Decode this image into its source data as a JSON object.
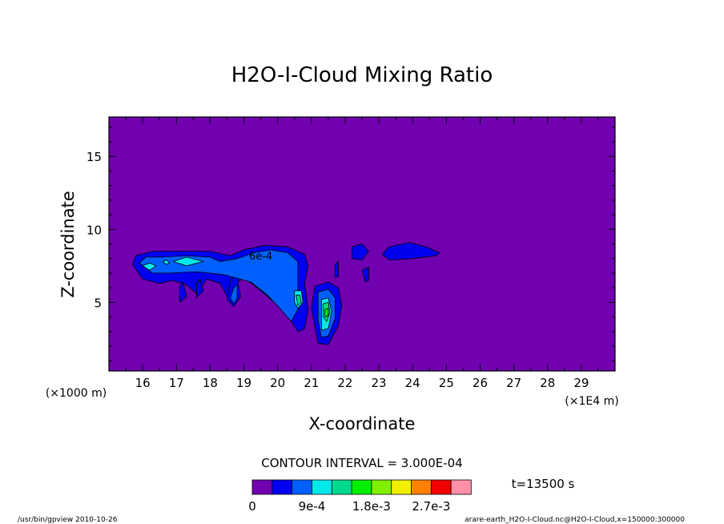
{
  "chart_data": {
    "type": "heatmap",
    "title": "H2O-I-Cloud Mixing Ratio",
    "xlabel": "X-coordinate",
    "ylabel": "Z-coordinate",
    "x_unit_left": "(×1000 m)",
    "x_unit_right": "(×1E4 m)",
    "xlim": [
      15,
      30
    ],
    "ylim": [
      0.3,
      17.7
    ],
    "x_ticks": [
      16,
      17,
      18,
      19,
      20,
      21,
      22,
      23,
      24,
      25,
      26,
      27,
      28,
      29
    ],
    "x_tick_labels": [
      "16",
      "17",
      "18",
      "19",
      "20",
      "21",
      "22",
      "23",
      "24",
      "25",
      "26",
      "27",
      "28",
      "29"
    ],
    "y_ticks": [
      5,
      10,
      15
    ],
    "y_tick_labels": [
      "5",
      "10",
      "15"
    ],
    "background_color": "#7000b0",
    "contour_label": {
      "text": "6e-4",
      "x": 19.5,
      "y": 8.2
    },
    "regions": [
      {
        "level": 1,
        "color": "#0000f0",
        "points": [
          [
            15.7,
            7.6
          ],
          [
            15.8,
            8.2
          ],
          [
            16.3,
            8.5
          ],
          [
            17.0,
            8.5
          ],
          [
            18.0,
            8.5
          ],
          [
            18.6,
            8.2
          ],
          [
            19.0,
            8.6
          ],
          [
            19.6,
            8.9
          ],
          [
            20.3,
            8.8
          ],
          [
            20.8,
            8.3
          ],
          [
            20.9,
            7.5
          ],
          [
            20.8,
            6.3
          ],
          [
            20.9,
            4.5
          ],
          [
            20.8,
            3.2
          ],
          [
            20.6,
            3.0
          ],
          [
            20.3,
            4.1
          ],
          [
            19.9,
            5.0
          ],
          [
            19.5,
            5.8
          ],
          [
            19.0,
            6.7
          ],
          [
            18.7,
            6.2
          ],
          [
            18.5,
            5.4
          ],
          [
            18.3,
            6.3
          ],
          [
            17.9,
            6.6
          ],
          [
            17.6,
            5.6
          ],
          [
            17.3,
            6.2
          ],
          [
            16.9,
            6.5
          ],
          [
            16.5,
            6.3
          ],
          [
            16.0,
            6.6
          ]
        ]
      },
      {
        "level": 1,
        "color": "#0000f0",
        "points": [
          [
            21.1,
            6.1
          ],
          [
            21.5,
            6.4
          ],
          [
            21.8,
            6.0
          ],
          [
            21.9,
            4.8
          ],
          [
            21.8,
            3.4
          ],
          [
            21.5,
            2.1
          ],
          [
            21.2,
            2.2
          ],
          [
            21.1,
            3.4
          ],
          [
            21.0,
            4.6
          ]
        ]
      },
      {
        "level": 1,
        "color": "#0000f0",
        "points": [
          [
            22.2,
            8.8
          ],
          [
            22.5,
            9.0
          ],
          [
            22.7,
            8.5
          ],
          [
            22.5,
            7.9
          ],
          [
            22.2,
            8.0
          ]
        ]
      },
      {
        "level": 1,
        "color": "#0000f0",
        "points": [
          [
            23.1,
            8.3
          ],
          [
            23.3,
            8.8
          ],
          [
            23.9,
            9.1
          ],
          [
            24.4,
            8.8
          ],
          [
            24.8,
            8.4
          ],
          [
            24.7,
            8.2
          ],
          [
            24.0,
            8.0
          ],
          [
            23.3,
            7.9
          ]
        ]
      },
      {
        "level": 1,
        "color": "#0000f0",
        "points": [
          [
            18.6,
            6.6
          ],
          [
            18.8,
            6.8
          ],
          [
            18.9,
            5.4
          ],
          [
            18.7,
            4.7
          ],
          [
            18.5,
            5.2
          ]
        ]
      },
      {
        "level": 1,
        "color": "#0000f0",
        "points": [
          [
            17.6,
            6.3
          ],
          [
            17.7,
            6.6
          ],
          [
            17.8,
            5.8
          ],
          [
            17.6,
            5.3
          ]
        ]
      },
      {
        "level": 1,
        "color": "#0000f0",
        "points": [
          [
            17.1,
            6.1
          ],
          [
            17.2,
            6.4
          ],
          [
            17.3,
            5.4
          ],
          [
            17.1,
            5.0
          ]
        ]
      },
      {
        "level": 1,
        "color": "#0000f0",
        "points": [
          [
            22.5,
            7.2
          ],
          [
            22.7,
            7.4
          ],
          [
            22.7,
            6.5
          ],
          [
            22.6,
            6.4
          ]
        ]
      },
      {
        "level": 1,
        "color": "#0000f0",
        "points": [
          [
            21.7,
            7.6
          ],
          [
            21.8,
            7.8
          ],
          [
            21.8,
            6.8
          ],
          [
            21.7,
            6.7
          ]
        ]
      },
      {
        "level": 2,
        "color": "#0060ff",
        "points": [
          [
            15.9,
            7.7
          ],
          [
            16.1,
            8.1
          ],
          [
            16.6,
            8.1
          ],
          [
            17.3,
            8.2
          ],
          [
            18.0,
            8.1
          ],
          [
            18.3,
            7.8
          ],
          [
            18.8,
            8.0
          ],
          [
            19.3,
            8.4
          ],
          [
            19.8,
            8.6
          ],
          [
            20.3,
            8.4
          ],
          [
            20.6,
            7.8
          ],
          [
            20.6,
            6.5
          ],
          [
            20.6,
            4.5
          ],
          [
            20.4,
            3.7
          ],
          [
            20.1,
            4.5
          ],
          [
            19.7,
            5.5
          ],
          [
            19.2,
            6.4
          ],
          [
            18.4,
            6.9
          ],
          [
            17.6,
            7.1
          ],
          [
            16.8,
            7.0
          ],
          [
            16.3,
            7.0
          ]
        ]
      },
      {
        "level": 2,
        "color": "#0060ff",
        "points": [
          [
            21.2,
            5.7
          ],
          [
            21.5,
            5.9
          ],
          [
            21.7,
            5.3
          ],
          [
            21.7,
            3.9
          ],
          [
            21.5,
            2.7
          ],
          [
            21.3,
            2.6
          ],
          [
            21.2,
            3.8
          ]
        ]
      },
      {
        "level": 2,
        "color": "#0060ff",
        "points": [
          [
            18.7,
            6.0
          ],
          [
            18.8,
            6.2
          ],
          [
            18.8,
            5.3
          ],
          [
            18.7,
            4.9
          ],
          [
            18.6,
            5.3
          ]
        ]
      },
      {
        "level": 3,
        "color": "#00e8e8",
        "points": [
          [
            16.0,
            7.5
          ],
          [
            16.2,
            7.7
          ],
          [
            16.4,
            7.5
          ],
          [
            16.2,
            7.2
          ]
        ]
      },
      {
        "level": 3,
        "color": "#00e8e8",
        "points": [
          [
            16.9,
            7.8
          ],
          [
            17.3,
            8.1
          ],
          [
            17.8,
            7.8
          ],
          [
            17.3,
            7.5
          ]
        ]
      },
      {
        "level": 3,
        "color": "#00e8e8",
        "points": [
          [
            16.6,
            7.8
          ],
          [
            16.7,
            7.9
          ],
          [
            16.8,
            7.7
          ],
          [
            16.7,
            7.6
          ]
        ]
      },
      {
        "level": 3,
        "color": "#00e8e8",
        "points": [
          [
            20.5,
            5.8
          ],
          [
            20.7,
            5.8
          ],
          [
            20.75,
            5.0
          ],
          [
            20.6,
            4.6
          ],
          [
            20.5,
            5.0
          ]
        ]
      },
      {
        "level": 3,
        "color": "#00e8e8",
        "points": [
          [
            21.3,
            5.2
          ],
          [
            21.5,
            5.3
          ],
          [
            21.6,
            4.4
          ],
          [
            21.5,
            3.2
          ],
          [
            21.3,
            3.1
          ],
          [
            21.3,
            4.2
          ]
        ]
      },
      {
        "level": 4,
        "color": "#00d890",
        "points": [
          [
            21.35,
            4.9
          ],
          [
            21.5,
            5.0
          ],
          [
            21.55,
            4.3
          ],
          [
            21.45,
            3.7
          ],
          [
            21.35,
            4.0
          ]
        ]
      },
      {
        "level": 4,
        "color": "#00d890",
        "points": [
          [
            20.55,
            5.5
          ],
          [
            20.65,
            5.5
          ],
          [
            20.7,
            5.0
          ],
          [
            20.6,
            4.8
          ]
        ]
      },
      {
        "level": 5,
        "color": "#00f000",
        "points": [
          [
            21.4,
            4.5
          ],
          [
            21.5,
            4.6
          ],
          [
            21.5,
            4.1
          ],
          [
            21.4,
            4.0
          ]
        ]
      }
    ],
    "colorbar": {
      "colors": [
        "#7000b0",
        "#0000f0",
        "#0060ff",
        "#00e8e8",
        "#00d890",
        "#00f000",
        "#80f000",
        "#f0f000",
        "#ff8000",
        "#f00000",
        "#ff90a8"
      ],
      "tick_labels": [
        "0",
        "9e-4",
        "1.8e-3",
        "2.7e-3"
      ],
      "tick_indices": [
        0,
        3,
        6,
        9
      ]
    },
    "grid": false,
    "legend": "bottom"
  },
  "annotations": {
    "contour_interval": "CONTOUR INTERVAL = 3.000E-04",
    "time": "t=13500 s",
    "footer_left": "/usr/bin/gpview  2010-10-26",
    "footer_right": "arare-earth_H2O-I-Cloud.nc@H2O-I-Cloud,x=150000:300000"
  }
}
